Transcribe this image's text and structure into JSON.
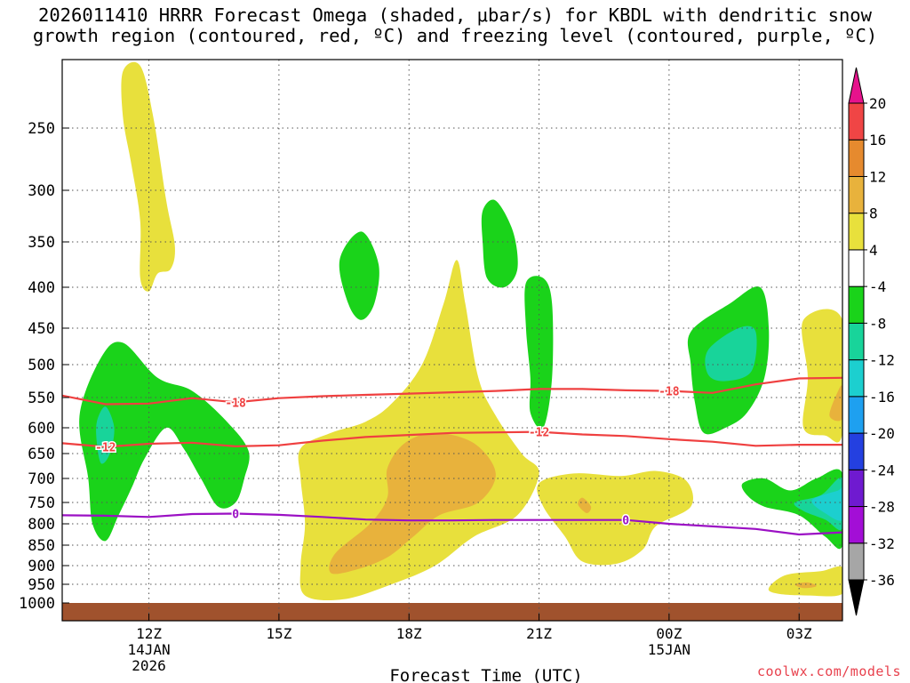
{
  "title": {
    "line1": "2026011410 HRRR Forecast Omega (shaded, μbar/s) for KBDL with dendritic snow",
    "line2": "growth region (contoured, red, ºC) and freezing level (contoured, purple, ºC)"
  },
  "credit": "coolwx.com/models",
  "chart_data": {
    "type": "contour",
    "title": "2026011410 HRRR Forecast Omega (shaded, μbar/s) for KBDL with dendritic snow growth region (contoured, red, ºC) and freezing level (contoured, purple, ºC)",
    "xlabel": "Forecast Time (UTC)",
    "ylabel": "",
    "x_units": "hours after 2026-01-14 10Z",
    "xlim": [
      0,
      18
    ],
    "ylim": [
      1000,
      200
    ],
    "y_scale": "log-pressure",
    "x_ticks": [
      {
        "x": 2,
        "label": "12Z",
        "sub": [
          "14JAN",
          "2026"
        ]
      },
      {
        "x": 5,
        "label": "15Z",
        "sub": []
      },
      {
        "x": 8,
        "label": "18Z",
        "sub": []
      },
      {
        "x": 11,
        "label": "21Z",
        "sub": []
      },
      {
        "x": 14,
        "label": "00Z",
        "sub": [
          "15JAN"
        ]
      },
      {
        "x": 17,
        "label": "03Z",
        "sub": []
      }
    ],
    "y_ticks": [
      250,
      300,
      350,
      400,
      450,
      500,
      550,
      600,
      650,
      700,
      750,
      800,
      850,
      900,
      950,
      1000
    ],
    "colorbar": {
      "levels": [
        -36,
        -32,
        -28,
        -24,
        -20,
        -16,
        -12,
        -8,
        -4,
        4,
        8,
        12,
        16,
        20
      ],
      "colors": [
        "#000000",
        "#a6a6a6",
        "#a30ed6",
        "#6f1ad0",
        "#2440e0",
        "#1ea0f0",
        "#1ccfcf",
        "#18d49a",
        "#1ad31a",
        "#ffffff",
        "#e8e03c",
        "#e8b23c",
        "#e68a2e",
        "#f04545",
        "#e6128c"
      ]
    },
    "shaded_regions": [
      {
        "value": "4 to 8",
        "color": "#e8e03c",
        "points": [
          [
            1.4,
            200
          ],
          [
            1.8,
            195
          ],
          [
            2.1,
            240
          ],
          [
            2.4,
            310
          ],
          [
            2.6,
            355
          ],
          [
            2.5,
            380
          ],
          [
            2.2,
            385
          ],
          [
            2.0,
            405
          ],
          [
            1.8,
            390
          ],
          [
            1.8,
            330
          ],
          [
            1.6,
            280
          ],
          [
            1.4,
            240
          ]
        ]
      },
      {
        "value": "4 to 8",
        "color": "#e8e03c",
        "points": [
          [
            5.5,
            640
          ],
          [
            6.2,
            610
          ],
          [
            7.0,
            590
          ],
          [
            7.6,
            560
          ],
          [
            8.3,
            500
          ],
          [
            8.8,
            420
          ],
          [
            9.1,
            370
          ],
          [
            9.3,
            420
          ],
          [
            9.6,
            520
          ],
          [
            10.0,
            580
          ],
          [
            10.6,
            650
          ],
          [
            11.0,
            690
          ],
          [
            10.5,
            780
          ],
          [
            9.5,
            830
          ],
          [
            8.6,
            900
          ],
          [
            7.6,
            950
          ],
          [
            6.5,
            990
          ],
          [
            5.6,
            980
          ],
          [
            5.5,
            900
          ],
          [
            5.6,
            800
          ],
          [
            5.5,
            700
          ]
        ]
      },
      {
        "value": "8 to 12",
        "color": "#e8b23c",
        "points": [
          [
            7.5,
            680
          ],
          [
            7.9,
            630
          ],
          [
            8.6,
            610
          ],
          [
            9.5,
            630
          ],
          [
            10.0,
            690
          ],
          [
            9.6,
            750
          ],
          [
            8.7,
            780
          ],
          [
            8.1,
            830
          ],
          [
            7.5,
            880
          ],
          [
            6.8,
            910
          ],
          [
            6.2,
            920
          ],
          [
            6.3,
            870
          ],
          [
            7.1,
            800
          ],
          [
            7.5,
            740
          ]
        ]
      },
      {
        "value": "4 to 8",
        "color": "#e8e03c",
        "points": [
          [
            11.0,
            710
          ],
          [
            11.8,
            690
          ],
          [
            12.9,
            695
          ],
          [
            13.7,
            685
          ],
          [
            14.4,
            705
          ],
          [
            14.5,
            760
          ],
          [
            13.7,
            805
          ],
          [
            13.4,
            860
          ],
          [
            12.8,
            895
          ],
          [
            12.0,
            890
          ],
          [
            11.6,
            830
          ],
          [
            11.1,
            760
          ]
        ]
      },
      {
        "value": "8 to 12",
        "color": "#e8b23c",
        "points": [
          [
            11.9,
            755
          ],
          [
            12.0,
            740
          ],
          [
            12.2,
            760
          ],
          [
            12.1,
            775
          ]
        ]
      },
      {
        "value": "4 to 8",
        "color": "#e8e03c",
        "points": [
          [
            17.1,
            440
          ],
          [
            18.0,
            440
          ],
          [
            18.0,
            610
          ],
          [
            17.6,
            615
          ],
          [
            17.1,
            600
          ],
          [
            17.2,
            520
          ]
        ]
      },
      {
        "value": "8 to 12",
        "color": "#e8b23c",
        "points": [
          [
            17.9,
            540
          ],
          [
            18.0,
            535
          ],
          [
            18.0,
            585
          ],
          [
            17.7,
            580
          ]
        ]
      },
      {
        "value": "4 to 8",
        "color": "#e8e03c",
        "points": [
          [
            16.3,
            960
          ],
          [
            16.7,
            925
          ],
          [
            17.5,
            915
          ],
          [
            18.0,
            905
          ],
          [
            18.0,
            975
          ],
          [
            17.2,
            980
          ],
          [
            16.5,
            975
          ]
        ]
      },
      {
        "value": "8 to 12",
        "color": "#e8b23c",
        "points": [
          [
            16.9,
            950
          ],
          [
            17.2,
            945
          ],
          [
            17.4,
            955
          ],
          [
            17.1,
            960
          ]
        ]
      },
      {
        "value": "-4 to -8",
        "color": "#1ad31a",
        "points": [
          [
            0.4,
            580
          ],
          [
            0.9,
            490
          ],
          [
            1.4,
            470
          ],
          [
            2.2,
            520
          ],
          [
            3.0,
            540
          ],
          [
            3.8,
            590
          ],
          [
            4.3,
            645
          ],
          [
            4.2,
            700
          ],
          [
            4.0,
            750
          ],
          [
            3.6,
            760
          ],
          [
            3.2,
            700
          ],
          [
            2.8,
            640
          ],
          [
            2.4,
            600
          ],
          [
            1.9,
            660
          ],
          [
            1.6,
            720
          ],
          [
            1.3,
            780
          ],
          [
            1.0,
            840
          ],
          [
            0.7,
            800
          ],
          [
            0.6,
            700
          ]
        ]
      },
      {
        "value": "-8 to -12",
        "color": "#18d49a",
        "points": [
          [
            0.8,
            590
          ],
          [
            1.0,
            565
          ],
          [
            1.2,
            600
          ],
          [
            1.1,
            650
          ],
          [
            0.9,
            670
          ],
          [
            0.8,
            630
          ]
        ]
      },
      {
        "value": "-4 to -8",
        "color": "#1ad31a",
        "points": [
          [
            6.4,
            370
          ],
          [
            6.9,
            340
          ],
          [
            7.3,
            375
          ],
          [
            7.2,
            420
          ],
          [
            6.9,
            440
          ],
          [
            6.6,
            420
          ]
        ]
      },
      {
        "value": "-4 to -8",
        "color": "#1ad31a",
        "points": [
          [
            9.7,
            320
          ],
          [
            10.0,
            310
          ],
          [
            10.4,
            340
          ],
          [
            10.5,
            380
          ],
          [
            10.2,
            400
          ],
          [
            9.8,
            390
          ],
          [
            9.7,
            350
          ]
        ]
      },
      {
        "value": "-4 to -8",
        "color": "#1ad31a",
        "points": [
          [
            10.7,
            395
          ],
          [
            11.1,
            390
          ],
          [
            11.3,
            420
          ],
          [
            11.3,
            520
          ],
          [
            11.1,
            600
          ],
          [
            10.8,
            575
          ],
          [
            10.8,
            520
          ],
          [
            10.7,
            450
          ]
        ]
      },
      {
        "value": "-4 to -8",
        "color": "#1ad31a",
        "points": [
          [
            14.5,
            455
          ],
          [
            15.4,
            420
          ],
          [
            16.1,
            400
          ],
          [
            16.3,
            450
          ],
          [
            16.2,
            520
          ],
          [
            15.8,
            575
          ],
          [
            15.3,
            600
          ],
          [
            14.8,
            610
          ],
          [
            14.6,
            560
          ],
          [
            14.5,
            500
          ]
        ]
      },
      {
        "value": "-8 to -12",
        "color": "#18d49a",
        "points": [
          [
            14.9,
            480
          ],
          [
            15.6,
            450
          ],
          [
            16.0,
            455
          ],
          [
            15.9,
            510
          ],
          [
            15.3,
            525
          ],
          [
            14.9,
            515
          ]
        ]
      },
      {
        "value": "-4 to -8",
        "color": "#1ad31a",
        "points": [
          [
            15.7,
            710
          ],
          [
            16.2,
            700
          ],
          [
            16.8,
            725
          ],
          [
            17.4,
            700
          ],
          [
            18.0,
            690
          ],
          [
            18.0,
            850
          ],
          [
            17.6,
            830
          ],
          [
            17.0,
            780
          ],
          [
            16.2,
            760
          ],
          [
            15.8,
            735
          ]
        ]
      },
      {
        "value": "-8 to -12",
        "color": "#18d49a",
        "points": [
          [
            16.9,
            750
          ],
          [
            17.5,
            735
          ],
          [
            18.0,
            700
          ],
          [
            18.0,
            810
          ],
          [
            17.6,
            790
          ],
          [
            17.1,
            770
          ]
        ]
      },
      {
        "value": "-12 to -16",
        "color": "#1ccfcf",
        "points": [
          [
            17.3,
            745
          ],
          [
            17.9,
            725
          ],
          [
            18.0,
            720
          ],
          [
            18.0,
            790
          ],
          [
            17.6,
            775
          ]
        ]
      }
    ],
    "contours": [
      {
        "name": "-18 ºC isotherm",
        "color": "#ef4040",
        "label": "-18",
        "label_x": 4.0,
        "label_x2": 14.0,
        "points": [
          [
            0,
            547
          ],
          [
            1,
            561
          ],
          [
            2,
            560
          ],
          [
            3,
            551
          ],
          [
            4,
            558
          ],
          [
            5,
            551
          ],
          [
            6,
            548
          ],
          [
            7,
            546
          ],
          [
            8,
            544
          ],
          [
            9,
            542
          ],
          [
            10,
            540
          ],
          [
            11,
            537
          ],
          [
            12,
            537
          ],
          [
            13,
            539
          ],
          [
            14,
            540
          ],
          [
            15,
            543
          ],
          [
            16,
            530
          ],
          [
            17,
            521
          ],
          [
            18,
            520
          ]
        ]
      },
      {
        "name": "-12 ºC isotherm",
        "color": "#ef4040",
        "label": "-12",
        "label_x": 1.0,
        "label_x2": 11.0,
        "points": [
          [
            0,
            630
          ],
          [
            1,
            637
          ],
          [
            2,
            631
          ],
          [
            3,
            629
          ],
          [
            4,
            636
          ],
          [
            5,
            634
          ],
          [
            6,
            625
          ],
          [
            7,
            618
          ],
          [
            8,
            614
          ],
          [
            9,
            610
          ],
          [
            10,
            609
          ],
          [
            11,
            608
          ],
          [
            12,
            613
          ],
          [
            13,
            616
          ],
          [
            14,
            622
          ],
          [
            15,
            627
          ],
          [
            16,
            635
          ],
          [
            17,
            633
          ],
          [
            18,
            633
          ]
        ]
      },
      {
        "name": "0 ºC freezing level",
        "color": "#9b10c4",
        "label": "0",
        "label_x": 4.0,
        "label_x2": 13.0,
        "points": [
          [
            0,
            780
          ],
          [
            1,
            781
          ],
          [
            2,
            784
          ],
          [
            3,
            777
          ],
          [
            4,
            776
          ],
          [
            5,
            779
          ],
          [
            6,
            784
          ],
          [
            7,
            790
          ],
          [
            8,
            792
          ],
          [
            9,
            792
          ],
          [
            10,
            791
          ],
          [
            11,
            791
          ],
          [
            12,
            791
          ],
          [
            13,
            791
          ],
          [
            14,
            800
          ],
          [
            15,
            806
          ],
          [
            16,
            812
          ],
          [
            17,
            825
          ],
          [
            18,
            820
          ]
        ]
      }
    ],
    "terrain": {
      "color": "#a0522d",
      "from_pressure": 1000
    }
  }
}
